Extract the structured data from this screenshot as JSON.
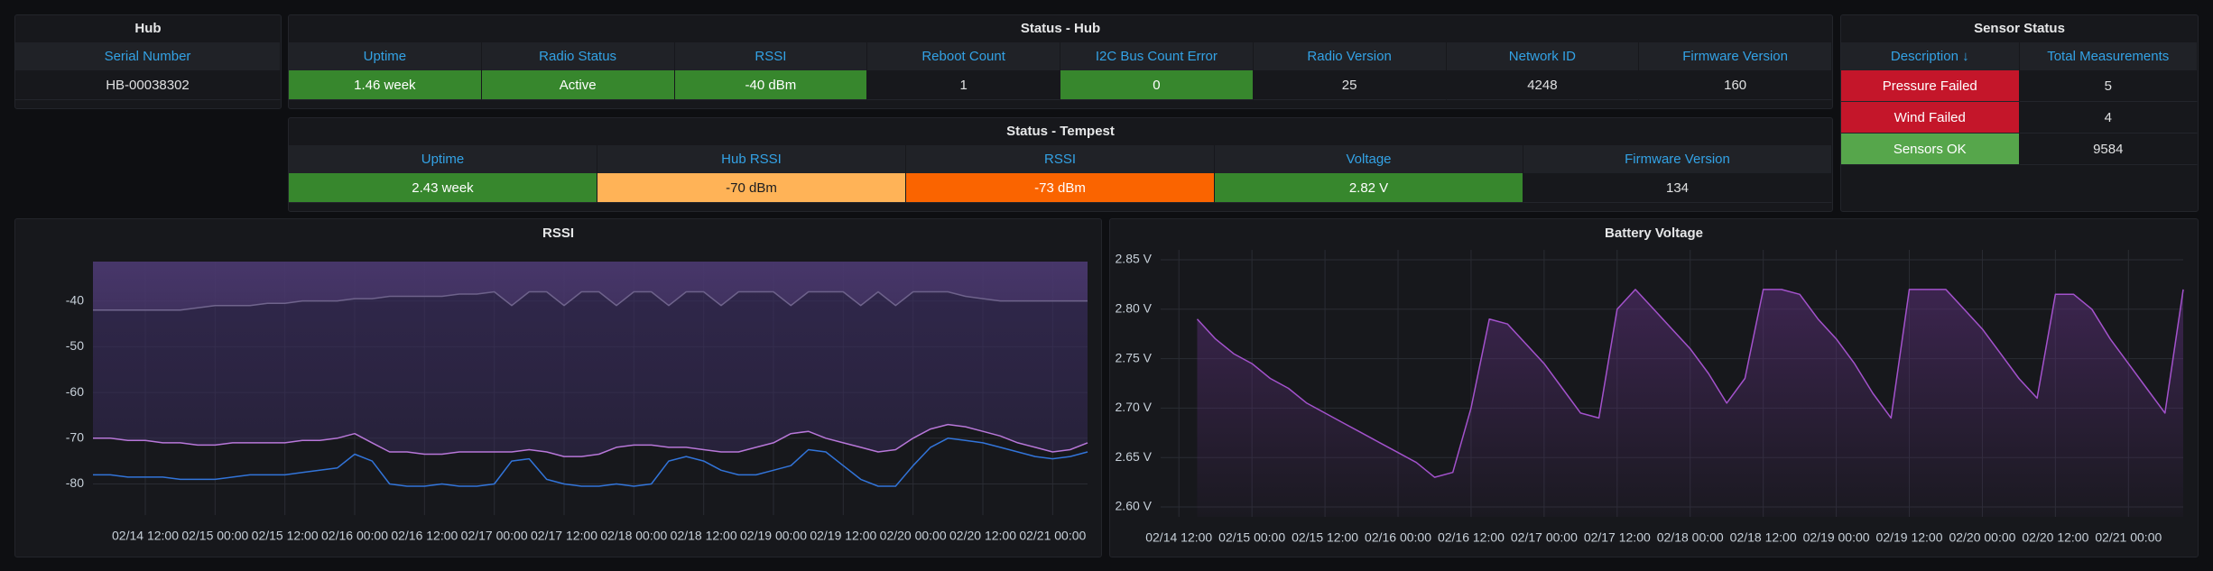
{
  "panels": {
    "hub": {
      "title": "Hub",
      "columns": [
        "Serial Number"
      ],
      "rows": [
        [
          "HB-00038302"
        ]
      ],
      "cell_colors": [
        [
          null
        ]
      ]
    },
    "status_hub": {
      "title": "Status - Hub",
      "columns": [
        "Uptime",
        "Radio Status",
        "RSSI",
        "Reboot Count",
        "I2C Bus Count Error",
        "Radio Version",
        "Network ID",
        "Firmware Version"
      ],
      "rows": [
        [
          "1.46 week",
          "Active",
          "-40 dBm",
          1,
          0,
          25,
          4248,
          160
        ]
      ],
      "cell_colors": [
        [
          "#37872d",
          "#37872d",
          "#37872d",
          null,
          "#37872d",
          null,
          null,
          null
        ]
      ]
    },
    "status_tempest": {
      "title": "Status - Tempest",
      "columns": [
        "Uptime",
        "Hub RSSI",
        "RSSI",
        "Voltage",
        "Firmware Version"
      ],
      "rows": [
        [
          "2.43 week",
          "-70 dBm",
          "-73 dBm",
          "2.82 V",
          134
        ]
      ],
      "cell_colors": [
        [
          "#37872d",
          "#ffb357",
          "#fa6400",
          "#37872d",
          null
        ]
      ]
    },
    "sensor_status": {
      "title": "Sensor Status",
      "columns": [
        "Description ↓",
        "Total Measurements"
      ],
      "rows": [
        [
          "Pressure Failed",
          5
        ],
        [
          "Wind Failed",
          4
        ],
        [
          "Sensors OK",
          9584
        ]
      ],
      "cell_colors": [
        [
          "#c4162a",
          null
        ],
        [
          "#c4162a",
          null
        ],
        [
          "#56a64b",
          null
        ]
      ]
    }
  },
  "chart_data": [
    {
      "type": "line",
      "title": "RSSI",
      "x": [
        "02/14 03:00",
        "02/14 06:00",
        "02/14 09:00",
        "02/14 12:00",
        "02/14 15:00",
        "02/14 18:00",
        "02/14 21:00",
        "02/15 00:00",
        "02/15 03:00",
        "02/15 06:00",
        "02/15 09:00",
        "02/15 12:00",
        "02/15 15:00",
        "02/15 18:00",
        "02/15 21:00",
        "02/16 00:00",
        "02/16 03:00",
        "02/16 06:00",
        "02/16 09:00",
        "02/16 12:00",
        "02/16 15:00",
        "02/16 18:00",
        "02/16 21:00",
        "02/17 00:00",
        "02/17 03:00",
        "02/17 06:00",
        "02/17 09:00",
        "02/17 12:00",
        "02/17 15:00",
        "02/17 18:00",
        "02/17 21:00",
        "02/18 00:00",
        "02/18 03:00",
        "02/18 06:00",
        "02/18 09:00",
        "02/18 12:00",
        "02/18 15:00",
        "02/18 18:00",
        "02/18 21:00",
        "02/19 00:00",
        "02/19 03:00",
        "02/19 06:00",
        "02/19 09:00",
        "02/19 12:00",
        "02/19 15:00",
        "02/19 18:00",
        "02/19 21:00",
        "02/20 00:00",
        "02/20 03:00",
        "02/20 06:00",
        "02/20 09:00",
        "02/20 12:00",
        "02/20 15:00",
        "02/20 18:00",
        "02/20 21:00",
        "02/21 00:00",
        "02/21 03:00",
        "02/21 06:00"
      ],
      "series": [
        {
          "color": "#e4dcf2",
          "fill": "above",
          "fill_color": "#8a64b0",
          "values": [
            -42,
            -42,
            -42,
            -42,
            -42,
            -42,
            -41.5,
            -41,
            -41,
            -41,
            -40.5,
            -40.5,
            -40,
            -40,
            -40,
            -39.5,
            -39.5,
            -39,
            -39,
            -39,
            -39,
            -38.5,
            -38.5,
            -38,
            -41,
            -38,
            -38,
            -41,
            -38,
            -38,
            -41,
            -38,
            -38,
            -41,
            -38,
            -38,
            -41,
            -38,
            -38,
            -38,
            -41,
            -38,
            -38,
            -38,
            -41,
            -38,
            -41,
            -38,
            -38,
            -38,
            -39,
            -39.5,
            -40,
            -40,
            -40,
            -40,
            -40,
            -40
          ]
        },
        {
          "color": "#b877d9",
          "fill": "above",
          "fill_color": "#3a2d5e",
          "values": [
            -70,
            -70,
            -70.5,
            -70.5,
            -71,
            -71,
            -71.5,
            -71.5,
            -71,
            -71,
            -71,
            -71,
            -70.5,
            -70.5,
            -70,
            -69,
            -71,
            -73,
            -73,
            -73.5,
            -73.5,
            -73,
            -73,
            -73,
            -73,
            -72.5,
            -73,
            -74,
            -74,
            -73.5,
            -72,
            -71.5,
            -71.5,
            -72,
            -72,
            -72.5,
            -73,
            -73,
            -72,
            -71,
            -69,
            -68.5,
            -70,
            -71,
            -72,
            -73,
            -72.5,
            -70,
            -68,
            -67,
            -67.5,
            -68.5,
            -69.5,
            -71,
            -72,
            -73,
            -72.5,
            -71
          ]
        },
        {
          "color": "#3274d9",
          "values": [
            -78,
            -78,
            -78.5,
            -78.5,
            -78.5,
            -79,
            -79,
            -79,
            -78.5,
            -78,
            -78,
            -78,
            -77.5,
            -77,
            -76.5,
            -73.5,
            -75,
            -80,
            -80.5,
            -80.5,
            -80,
            -80.5,
            -80.5,
            -80,
            -75,
            -74.5,
            -79,
            -80,
            -80.5,
            -80.5,
            -80,
            -80.5,
            -80,
            -75,
            -74,
            -75,
            -77,
            -78,
            -78,
            -77,
            -76,
            -72.5,
            -73,
            -76,
            -79,
            -80.5,
            -80.5,
            -76,
            -72,
            -70,
            -70.5,
            -71,
            -72,
            -73,
            -74,
            -74.5,
            -74,
            -73
          ]
        }
      ],
      "ylim": [
        -86.8,
        -31.4
      ],
      "yticks": [
        -40,
        -50,
        -60,
        -70,
        -80
      ],
      "xticks": [
        "02/14 12:00",
        "02/15 00:00",
        "02/15 12:00",
        "02/16 00:00",
        "02/16 12:00",
        "02/17 00:00",
        "02/17 12:00",
        "02/18 00:00",
        "02/18 12:00",
        "02/19 00:00",
        "02/19 12:00",
        "02/20 00:00",
        "02/20 12:00",
        "02/21 00:00"
      ],
      "grid": true
    },
    {
      "type": "line",
      "title": "Battery Voltage",
      "x": [
        "02/14 09:00",
        "02/14 12:00",
        "02/14 15:00",
        "02/14 18:00",
        "02/14 21:00",
        "02/15 00:00",
        "02/15 03:00",
        "02/15 06:00",
        "02/15 09:00",
        "02/15 12:00",
        "02/15 15:00",
        "02/15 18:00",
        "02/15 21:00",
        "02/16 00:00",
        "02/16 03:00",
        "02/16 06:00",
        "02/16 09:00",
        "02/16 12:00",
        "02/16 15:00",
        "02/16 18:00",
        "02/16 21:00",
        "02/17 00:00",
        "02/17 03:00",
        "02/17 06:00",
        "02/17 09:00",
        "02/17 12:00",
        "02/17 15:00",
        "02/17 18:00",
        "02/17 21:00",
        "02/18 00:00",
        "02/18 03:00",
        "02/18 06:00",
        "02/18 09:00",
        "02/18 12:00",
        "02/18 15:00",
        "02/18 18:00",
        "02/18 21:00",
        "02/19 00:00",
        "02/19 03:00",
        "02/19 06:00",
        "02/19 09:00",
        "02/19 12:00",
        "02/19 15:00",
        "02/19 18:00",
        "02/19 21:00",
        "02/20 00:00",
        "02/20 03:00",
        "02/20 06:00",
        "02/20 09:00",
        "02/20 12:00",
        "02/20 15:00",
        "02/20 18:00",
        "02/20 21:00",
        "02/21 00:00",
        "02/21 03:00",
        "02/21 06:00",
        "02/21 09:00"
      ],
      "series": [
        {
          "color": "#a352cc",
          "fill": "below",
          "fill_color": "#5a2f78",
          "values": [
            null,
            null,
            2.79,
            2.77,
            2.755,
            2.745,
            2.73,
            2.72,
            2.705,
            2.695,
            2.685,
            2.675,
            2.665,
            2.655,
            2.645,
            2.63,
            2.635,
            2.7,
            2.79,
            2.785,
            2.765,
            2.745,
            2.72,
            2.695,
            2.69,
            2.8,
            2.82,
            2.8,
            2.78,
            2.76,
            2.735,
            2.705,
            2.73,
            2.82,
            2.82,
            2.815,
            2.79,
            2.77,
            2.745,
            2.715,
            2.69,
            2.82,
            2.82,
            2.82,
            2.8,
            2.78,
            2.755,
            2.73,
            2.71,
            2.815,
            2.815,
            2.8,
            2.77,
            2.745,
            2.72,
            2.695,
            2.82
          ]
        }
      ],
      "ylim": [
        2.59,
        2.86
      ],
      "yticks": [
        {
          "value": 2.85,
          "label": "2.85 V"
        },
        {
          "value": 2.8,
          "label": "2.80 V"
        },
        {
          "value": 2.75,
          "label": "2.75 V"
        },
        {
          "value": 2.7,
          "label": "2.70 V"
        },
        {
          "value": 2.65,
          "label": "2.65 V"
        },
        {
          "value": 2.6,
          "label": "2.60 V"
        }
      ],
      "xticks": [
        "02/14 12:00",
        "02/15 00:00",
        "02/15 12:00",
        "02/16 00:00",
        "02/16 12:00",
        "02/17 00:00",
        "02/17 12:00",
        "02/18 00:00",
        "02/18 12:00",
        "02/19 00:00",
        "02/19 12:00",
        "02/20 00:00",
        "02/20 12:00",
        "02/21 00:00"
      ],
      "grid": true
    }
  ]
}
